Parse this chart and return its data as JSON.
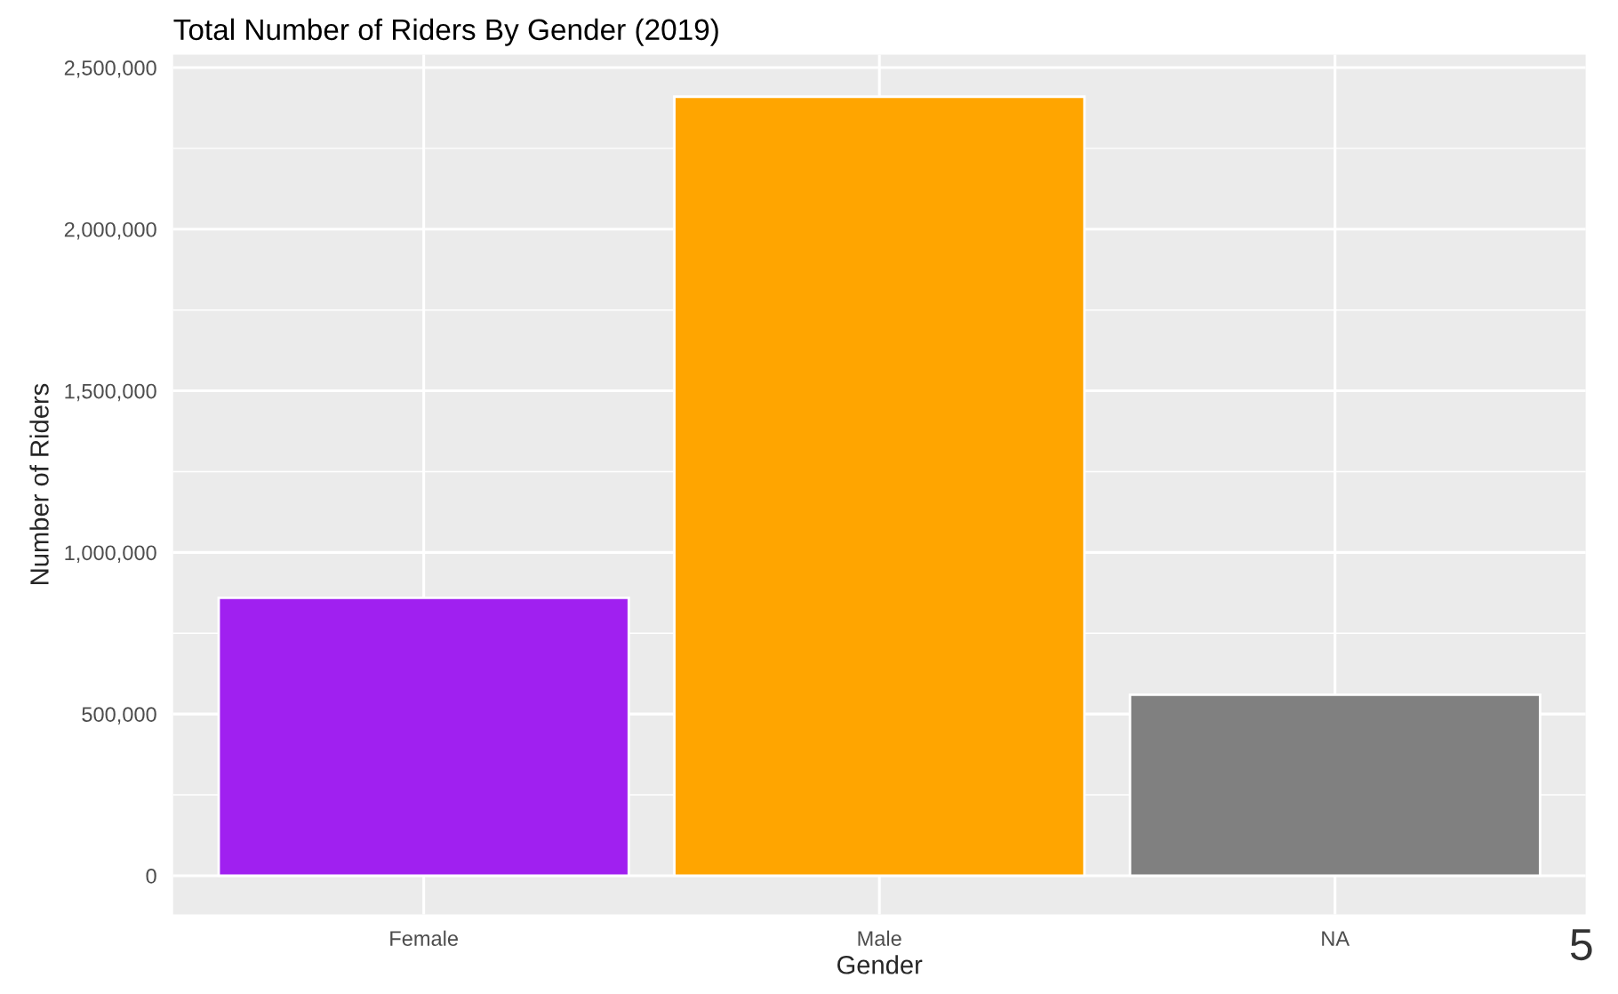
{
  "chart_data": {
    "type": "bar",
    "title": "Total Number of Riders By Gender (2019)",
    "xlabel": "Gender",
    "ylabel": "Number of Riders",
    "categories": [
      "Female",
      "Male",
      "NA"
    ],
    "values": [
      860000,
      2410000,
      560000
    ],
    "colors": [
      "#a020f0",
      "#ffa500",
      "#808080"
    ],
    "ylim": [
      -120000,
      2540000
    ],
    "yticks": [
      {
        "value": 0,
        "label": "0"
      },
      {
        "value": 500000,
        "label": "500,000"
      },
      {
        "value": 1000000,
        "label": "1,000,000"
      },
      {
        "value": 1500000,
        "label": "1,500,000"
      },
      {
        "value": 2000000,
        "label": "2,000,000"
      },
      {
        "value": 2500000,
        "label": "2,500,000"
      }
    ],
    "grid": true,
    "legend": false,
    "annotations": [
      "5"
    ]
  }
}
